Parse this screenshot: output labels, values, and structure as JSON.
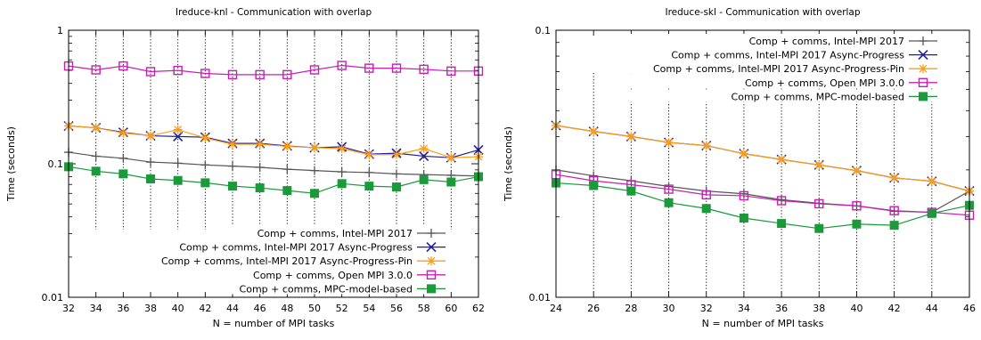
{
  "chart_data": [
    {
      "type": "line",
      "title": "Ireduce-knl - Communication with overlap",
      "xlabel": "N = number of MPI tasks",
      "ylabel": "Time (seconds)",
      "x": [
        32,
        34,
        36,
        38,
        40,
        42,
        44,
        46,
        48,
        50,
        52,
        54,
        56,
        58,
        60,
        62
      ],
      "xlim": [
        32,
        62
      ],
      "ylim": [
        0.01,
        1
      ],
      "yscale": "log",
      "xticks": [
        "32",
        "34",
        "36",
        "38",
        "40",
        "42",
        "44",
        "46",
        "48",
        "50",
        "52",
        "54",
        "56",
        "58",
        "60",
        "62"
      ],
      "yticks": [
        {
          "value": 1,
          "label": "1"
        },
        {
          "value": 0.1,
          "label": "0.1"
        },
        {
          "value": 0.01,
          "label": "0.01"
        }
      ],
      "grid": "vertical dotted",
      "legend_position": "bottom-right",
      "series": [
        {
          "name": "Comp + comms, Intel-MPI 2017",
          "color": "#555555",
          "marker": "plus",
          "values": [
            0.122,
            0.114,
            0.11,
            0.103,
            0.101,
            0.098,
            0.096,
            0.094,
            0.091,
            0.089,
            0.087,
            0.086,
            0.084,
            0.083,
            0.082,
            0.081
          ]
        },
        {
          "name": "Comp + comms, Intel-MPI 2017 Async-Progress",
          "color": "#1f1f9e",
          "marker": "cross",
          "values": [
            0.192,
            0.186,
            0.172,
            0.162,
            0.16,
            0.158,
            0.142,
            0.142,
            0.136,
            0.132,
            0.134,
            0.118,
            0.12,
            0.114,
            0.111,
            0.127
          ]
        },
        {
          "name": "Comp + comms, Intel-MPI 2017 Async-Progress-Pin",
          "color": "#ff9d14",
          "marker": "star",
          "values": [
            0.192,
            0.186,
            0.17,
            0.162,
            0.18,
            0.156,
            0.14,
            0.14,
            0.135,
            0.132,
            0.13,
            0.117,
            0.117,
            0.13,
            0.111,
            0.113
          ]
        },
        {
          "name": "Comp + comms, Open MPI 3.0.0",
          "color": "#c81eb4",
          "marker": "open-square",
          "values": [
            0.54,
            0.505,
            0.54,
            0.49,
            0.5,
            0.475,
            0.465,
            0.465,
            0.465,
            0.505,
            0.545,
            0.52,
            0.52,
            0.51,
            0.495,
            0.495
          ]
        },
        {
          "name": "Comp + comms, MPC-model-based",
          "color": "#1a9a3a",
          "marker": "filled-square",
          "values": [
            0.095,
            0.088,
            0.084,
            0.077,
            0.075,
            0.072,
            0.068,
            0.066,
            0.063,
            0.06,
            0.071,
            0.068,
            0.067,
            0.076,
            0.073,
            0.08
          ]
        }
      ]
    },
    {
      "type": "line",
      "title": "Ireduce-skl - Communication with overlap",
      "xlabel": "N = number of MPI tasks",
      "ylabel": "Time (seconds)",
      "x": [
        24,
        26,
        28,
        30,
        32,
        34,
        36,
        38,
        40,
        42,
        44,
        46
      ],
      "xlim": [
        24,
        46
      ],
      "ylim": [
        0.01,
        0.1
      ],
      "yscale": "log",
      "xticks": [
        "24",
        "26",
        "28",
        "30",
        "32",
        "34",
        "36",
        "38",
        "40",
        "42",
        "44",
        "46"
      ],
      "yticks": [
        {
          "value": 0.1,
          "label": "0.1"
        },
        {
          "value": 0.01,
          "label": "0.01"
        }
      ],
      "grid": "vertical dotted",
      "legend_position": "top-right",
      "series": [
        {
          "name": "Comp + comms, Intel-MPI 2017",
          "color": "#555555",
          "marker": "plus",
          "values": [
            0.03,
            0.0285,
            0.0273,
            0.026,
            0.025,
            0.0244,
            0.0232,
            0.0225,
            0.022,
            0.021,
            0.0208,
            0.025
          ]
        },
        {
          "name": "Comp + comms, Intel-MPI 2017 Async-Progress",
          "color": "#1f1f9e",
          "marker": "cross",
          "values": [
            0.044,
            0.0418,
            0.04,
            0.038,
            0.037,
            0.0345,
            0.0328,
            0.0313,
            0.0298,
            0.028,
            0.0272,
            0.025
          ]
        },
        {
          "name": "Comp + comms, Intel-MPI 2017 Async-Progress-Pin",
          "color": "#ff9d14",
          "marker": "star",
          "values": [
            0.044,
            0.0418,
            0.04,
            0.038,
            0.037,
            0.0345,
            0.0328,
            0.0313,
            0.0298,
            0.028,
            0.0272,
            0.025
          ]
        },
        {
          "name": "Comp + comms, Open MPI 3.0.0",
          "color": "#c81eb4",
          "marker": "open-square",
          "values": [
            0.0288,
            0.0273,
            0.0264,
            0.0254,
            0.0242,
            0.024,
            0.023,
            0.0224,
            0.022,
            0.0211,
            0.0208,
            0.0203
          ]
        },
        {
          "name": "Comp + comms, MPC-model-based",
          "color": "#1a9a3a",
          "marker": "filled-square",
          "values": [
            0.0268,
            0.0262,
            0.025,
            0.0226,
            0.0215,
            0.0198,
            0.0189,
            0.0181,
            0.0188,
            0.0186,
            0.0206,
            0.0221
          ]
        }
      ]
    }
  ]
}
